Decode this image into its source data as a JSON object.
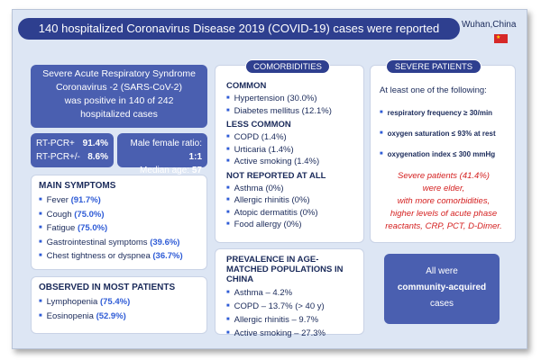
{
  "title": "140 hospitalized Coronavirus Disease 2019 (COVID-19) cases were reported",
  "location": "Wuhan,China",
  "intro": {
    "line1": "Severe Acute Respiratory Syndrome",
    "line2": "Coronavirus -2 (SARS-CoV-2)",
    "line3": "was positive in 140 of 242",
    "line4": "hospitalized cases"
  },
  "pcr": {
    "pos_label": "RT-PCR+",
    "pos_value": "91.4%",
    "mixed_label": "RT-PCR+/-",
    "mixed_value": "8.6%"
  },
  "demographics": {
    "ratio_label": "Male female ratio:",
    "ratio_value": "1:1",
    "age_label": "Median age:",
    "age_value": "57"
  },
  "symptoms": {
    "heading": "MAIN SYMPTOMS",
    "items": [
      {
        "label": "Fever",
        "value": "(91.7%)"
      },
      {
        "label": "Cough",
        "value": "(75.0%)"
      },
      {
        "label": "Fatigue",
        "value": "(75.0%)"
      },
      {
        "label": "Gastrointestinal symptoms",
        "value": "(39.6%)"
      },
      {
        "label": "Chest tightness or dyspnea",
        "value": "(36.7%)"
      }
    ]
  },
  "observed": {
    "heading": "OBSERVED IN MOST PATIENTS",
    "items": [
      {
        "label": "Lymphopenia",
        "value": "(75.4%)"
      },
      {
        "label": "Eosinopenia",
        "value": "(52.9%)"
      }
    ]
  },
  "comorbidities": {
    "tag": "COMORBIDITIES",
    "common_heading": "COMMON",
    "common": [
      "Hypertension (30.0%)",
      "Diabetes mellitus (12.1%)"
    ],
    "less_heading": "LESS COMMON",
    "less": [
      "COPD (1.4%)",
      "Urticaria (1.4%)",
      "Active smoking (1.4%)"
    ],
    "none_heading": "NOT REPORTED  AT ALL",
    "none": [
      "Asthma (0%)",
      "Allergic rhinitis (0%)",
      "Atopic dermatitis (0%)",
      "Food allergy (0%)"
    ]
  },
  "prevalence": {
    "heading": "PREVALENCE IN AGE-MATCHED POPULATIONS IN CHINA",
    "items": [
      "Asthma – 4.2%",
      "COPD – 13.7% (> 40 y)",
      "Allergic rhinitis – 9.7%",
      "Active smoking – 27.3%"
    ]
  },
  "severe": {
    "tag": "SEVERE PATIENTS",
    "lead": "At least one of the following:",
    "criteria": [
      "respiratory frequency ≥ 30/min",
      "oxygen saturation ≤ 93% at rest",
      "oxygenation index ≤ 300 mmHg"
    ],
    "note_line1": "Severe patients (41.4%)",
    "note_line2": "were elder,",
    "note_line3": "with more comorbidities,",
    "note_line4": "higher levels of acute phase",
    "note_line5": "reactants, CRP, PCT, D-Dimer."
  },
  "community": {
    "line1": "All were",
    "line2": "community-acquired",
    "line3": "cases"
  }
}
